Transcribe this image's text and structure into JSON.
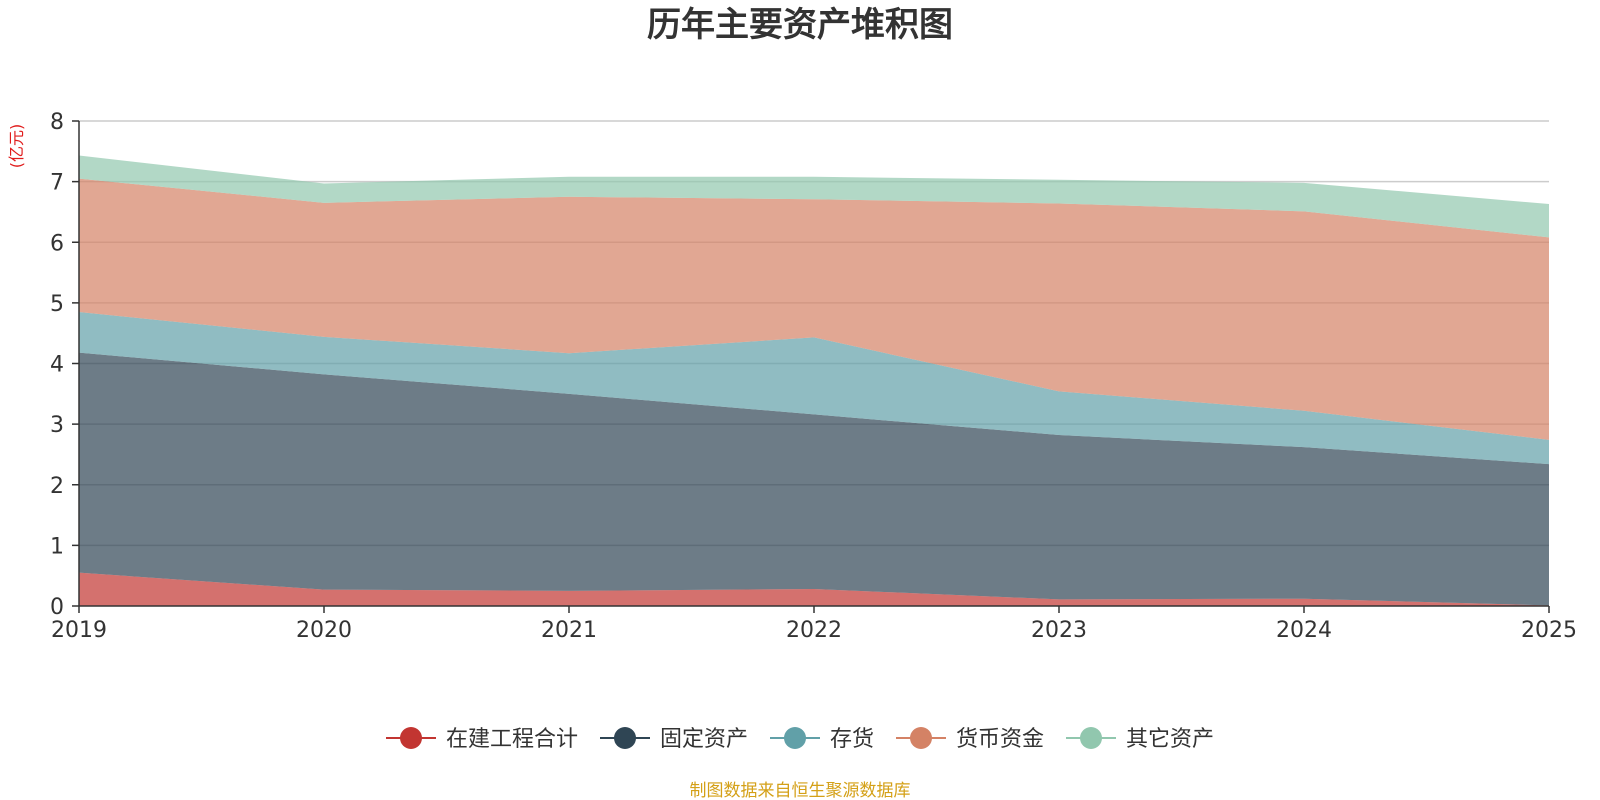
{
  "chart_data": {
    "type": "area",
    "stacked": true,
    "title": "历年主要资产堆积图",
    "y_unit_label": "(亿元)",
    "categories": [
      "2019",
      "2020",
      "2021",
      "2022",
      "2023",
      "2024",
      "2025"
    ],
    "ylim": [
      0,
      8
    ],
    "y_ticks": [
      0,
      1,
      2,
      3,
      4,
      5,
      6,
      7,
      8
    ],
    "grid": true,
    "legend_position": "bottom",
    "series": [
      {
        "name": "在建工程合计",
        "color": "#c23531",
        "values": [
          0.55,
          0.27,
          0.25,
          0.28,
          0.11,
          0.12,
          0.01
        ]
      },
      {
        "name": "固定资产",
        "color": "#2f4554",
        "values": [
          3.63,
          3.55,
          3.25,
          2.88,
          2.71,
          2.5,
          2.33
        ]
      },
      {
        "name": "存货",
        "color": "#61a0a8",
        "values": [
          0.67,
          0.62,
          0.67,
          1.27,
          0.72,
          0.6,
          0.4
        ]
      },
      {
        "name": "货币资金",
        "color": "#d48265",
        "values": [
          2.2,
          2.21,
          2.58,
          2.28,
          3.1,
          3.29,
          3.34
        ]
      },
      {
        "name": "其它资产",
        "color": "#91c7ae",
        "values": [
          0.38,
          0.32,
          0.33,
          0.37,
          0.39,
          0.47,
          0.55
        ]
      }
    ]
  },
  "footer": {
    "source_text": "制图数据来自恒生聚源数据库"
  },
  "colors": {
    "title": "#333333",
    "unit": "#e01c1c",
    "source": "#d4a017",
    "grid": "#cccccc",
    "axis": "#333333"
  }
}
